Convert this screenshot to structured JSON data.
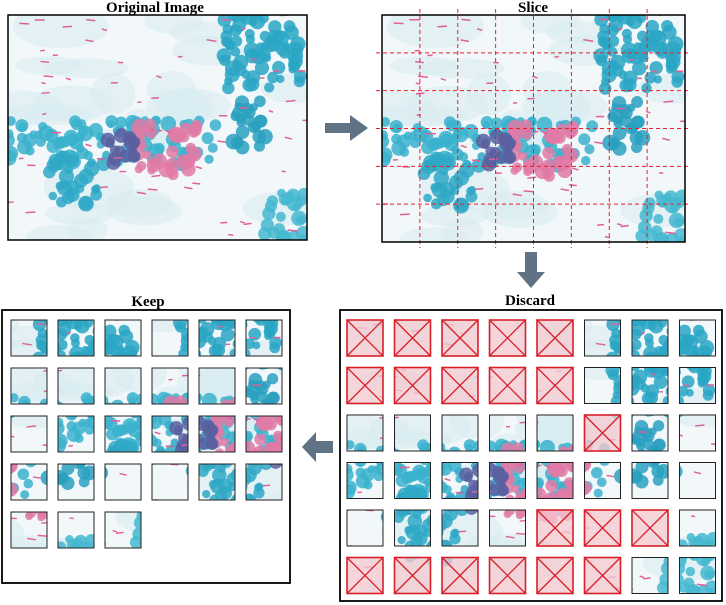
{
  "panels": {
    "original": {
      "title": "Original Image"
    },
    "slice": {
      "title": "Slice"
    },
    "keep": {
      "title": "Keep"
    },
    "discard": {
      "title": "Discard"
    }
  }
}
